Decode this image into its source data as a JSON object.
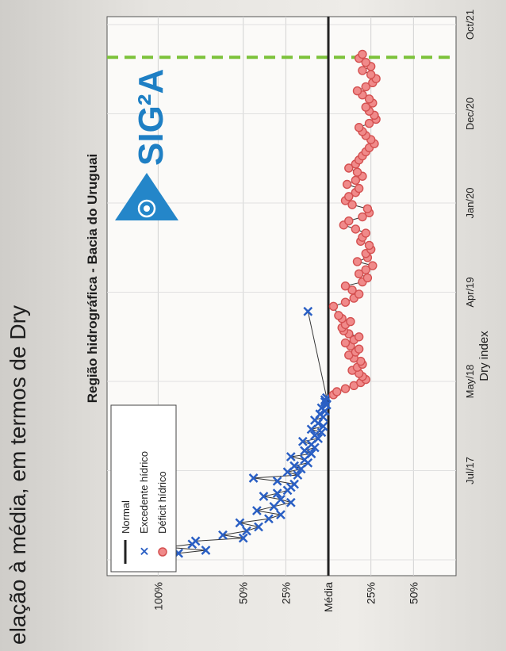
{
  "page": {
    "title_cut": "elação à média, em termos de Dry"
  },
  "logo": {
    "text": "SIG²A"
  },
  "chart_data": {
    "type": "line",
    "title": "Região hidrográfica - Bacia do Uruguai",
    "xlabel": "",
    "ylabel": "Dry index",
    "x_ticks": [
      "",
      "Jul/17",
      "May/18",
      "Apr/19",
      "Jan/20",
      "Dec/20",
      "Oct/21"
    ],
    "y_ticks": [
      "100%",
      "50%",
      "25%",
      "Média",
      "25%",
      "50%"
    ],
    "y_tick_values": [
      100,
      50,
      25,
      0,
      -25,
      -50
    ],
    "grid": true,
    "legend": {
      "position": "top-left",
      "entries": [
        "Normal",
        "Excedente hídrico",
        "Déficit hídrico"
      ]
    },
    "reference_line": {
      "name": "Normal",
      "value": 0
    },
    "vertical_marker": {
      "style": "dashed",
      "color": "#7cc23a",
      "x": 1.0
    },
    "colors": {
      "surplus": "#2a5fc4",
      "deficit": "#e86a6a",
      "normal": "#222222"
    },
    "series": [
      {
        "name": "Excedente hídrico",
        "x": [
          0.0,
          0.006,
          0.012,
          0.018,
          0.024,
          0.03,
          0.036,
          0.042,
          0.048,
          0.054,
          0.06,
          0.068,
          0.076,
          0.084,
          0.092,
          0.1,
          0.108,
          0.116,
          0.124,
          0.13,
          0.136,
          0.142,
          0.148,
          0.154,
          0.16,
          0.166,
          0.172,
          0.178,
          0.184,
          0.19,
          0.196,
          0.202,
          0.208,
          0.214,
          0.22,
          0.226,
          0.232,
          0.238,
          0.244,
          0.25,
          0.256,
          0.262,
          0.268,
          0.274,
          0.28,
          0.286,
          0.292,
          0.298,
          0.304,
          0.31,
          0.316,
          0.322,
          0.326,
          0.33,
          0.5
        ],
        "y": [
          118,
          92,
          115,
          108,
          88,
          72,
          95,
          80,
          78,
          50,
          62,
          48,
          41,
          52,
          35,
          28,
          42,
          32,
          22,
          28,
          38,
          30,
          24,
          22,
          20,
          30,
          44,
          18,
          24,
          16,
          20,
          12,
          14,
          22,
          10,
          14,
          8,
          10,
          15,
          6,
          8,
          4,
          10,
          3,
          6,
          8,
          3,
          5,
          2,
          4,
          1,
          2,
          2,
          1,
          12
        ]
      },
      {
        "name": "Déficit hídrico",
        "x": [
          0.336,
          0.342,
          0.348,
          0.354,
          0.36,
          0.366,
          0.372,
          0.378,
          0.384,
          0.39,
          0.396,
          0.402,
          0.408,
          0.414,
          0.42,
          0.426,
          0.432,
          0.438,
          0.444,
          0.45,
          0.456,
          0.462,
          0.468,
          0.474,
          0.48,
          0.486,
          0.492,
          0.51,
          0.518,
          0.526,
          0.534,
          0.542,
          0.55,
          0.558,
          0.566,
          0.574,
          0.582,
          0.59,
          0.598,
          0.606,
          0.614,
          0.622,
          0.63,
          0.638,
          0.646,
          0.654,
          0.662,
          0.67,
          0.678,
          0.686,
          0.694,
          0.702,
          0.71,
          0.718,
          0.726,
          0.734,
          0.742,
          0.75,
          0.758,
          0.766,
          0.774,
          0.782,
          0.79,
          0.798,
          0.806,
          0.814,
          0.822,
          0.83,
          0.838,
          0.846,
          0.854,
          0.862,
          0.87,
          0.878,
          0.886,
          0.894,
          0.902,
          0.91,
          0.918,
          0.926,
          0.934,
          0.942,
          0.95,
          0.958,
          0.966,
          0.974,
          0.982,
          0.99,
          0.998,
          1.006
        ],
        "y": [
          -3,
          -5,
          -10,
          -15,
          -19,
          -22,
          -20,
          -18,
          -14,
          -17,
          -20,
          -19,
          -15,
          -12,
          -16,
          -18,
          -13,
          -10,
          -15,
          -18,
          -12,
          -9,
          -8,
          -10,
          -13,
          -8,
          -6,
          -3,
          -10,
          -15,
          -18,
          -14,
          -10,
          -20,
          -23,
          -18,
          -22,
          -26,
          -17,
          -23,
          -22,
          -25,
          -24,
          -19,
          -20,
          -22,
          -16,
          -9,
          -12,
          -20,
          -24,
          -23,
          -14,
          -10,
          -12,
          -16,
          -18,
          -11,
          -16,
          -20,
          -17,
          -12,
          -16,
          -18,
          -20,
          -22,
          -24,
          -27,
          -25,
          -22,
          -20,
          -18,
          -24,
          -28,
          -27,
          -24,
          -22,
          -26,
          -24,
          -20,
          -17,
          -22,
          -26,
          -28,
          -25,
          -20,
          -25,
          -22,
          -18,
          -20
        ]
      }
    ],
    "xlim": [
      -0.02,
      1.08
    ],
    "ylim": [
      -75,
      130
    ]
  }
}
